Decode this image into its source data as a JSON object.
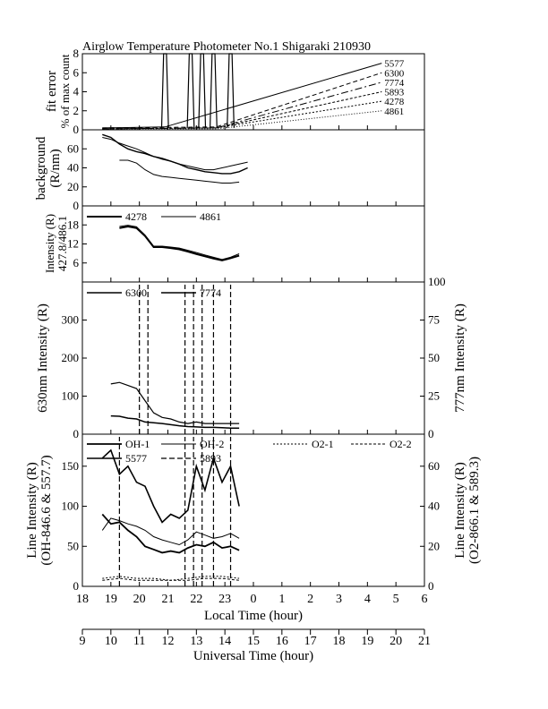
{
  "title": "Airglow Temperature Photometer No.1  Shigaraki  210930",
  "x_local": {
    "label": "Local Time (hour)",
    "ticks": [
      "18",
      "19",
      "20",
      "21",
      "22",
      "23",
      "0",
      "1",
      "2",
      "3",
      "4",
      "5",
      "6"
    ]
  },
  "x_ut": {
    "label": "Universal Time (hour)",
    "ticks": [
      "9",
      "10",
      "11",
      "12",
      "13",
      "14",
      "15",
      "16",
      "17",
      "18",
      "19",
      "20",
      "21"
    ]
  },
  "panels": {
    "fit": {
      "ylabel1": "fit error",
      "ylabel2": "% of max count",
      "yticks": [
        "0",
        "2",
        "4",
        "6",
        "8"
      ],
      "labels": [
        "5577",
        "6300",
        "7774",
        "5893",
        "4278",
        "4861"
      ]
    },
    "bg": {
      "ylabel1": "background",
      "ylabel2": "(R/nm)",
      "yticks": [
        "0",
        "20",
        "40",
        "60"
      ]
    },
    "blue": {
      "ylabel1": "Intensity (R)",
      "ylabel2": "427.8/486.1",
      "yticks": [
        "6",
        "12",
        "18"
      ],
      "legend": [
        "4278",
        "4861"
      ]
    },
    "red": {
      "ylabel_left": "630nm Intensity (R)",
      "ylabel_right": "777nm Intensity (R)",
      "yticks_left": [
        "0",
        "100",
        "200",
        "300"
      ],
      "yticks_right": [
        "0",
        "25",
        "50",
        "75",
        "100"
      ],
      "legend": [
        "6300",
        "7774"
      ]
    },
    "line": {
      "ylabel_left1": "Line Intensity (R)",
      "ylabel_left2": "(OH-846.6 & 557.7)",
      "ylabel_right1": "Line Intensity (R)",
      "ylabel_right2": "(O2-866.1 & 589.3)",
      "yticks_left": [
        "0",
        "50",
        "100",
        "150"
      ],
      "yticks_right": [
        "0",
        "20",
        "40",
        "60"
      ],
      "legend": [
        "OH-1",
        "OH-2",
        "O2-1",
        "O2-2",
        "5577",
        "5893"
      ]
    }
  },
  "chart_data": [
    {
      "type": "line",
      "title": "Airglow Temperature Photometer No.1  Shigaraki  210930",
      "ylabel": "fit error % of max count",
      "ylim": [
        0,
        8
      ],
      "xlim_local": [
        18,
        30
      ],
      "series": [
        {
          "name": "5577",
          "x": [
            18.7,
            20.9,
            28.5
          ],
          "y": [
            0.2,
            0.3,
            7.0
          ]
        },
        {
          "name": "6300",
          "x": [
            18.7,
            22.7,
            28.5
          ],
          "y": [
            0.2,
            0.3,
            6.0
          ]
        },
        {
          "name": "7774",
          "x": [
            18.7,
            22.7,
            28.5
          ],
          "y": [
            0.1,
            0.2,
            5.0
          ]
        },
        {
          "name": "5893",
          "x": [
            18.7,
            22.7,
            28.5
          ],
          "y": [
            0.1,
            0.2,
            4.0
          ]
        },
        {
          "name": "4278",
          "x": [
            18.7,
            22.7,
            28.5
          ],
          "y": [
            0.1,
            0.2,
            3.0
          ]
        },
        {
          "name": "4861",
          "x": [
            18.7,
            22.7,
            28.5
          ],
          "y": [
            0.1,
            0.1,
            2.0
          ]
        }
      ],
      "spikes_x": [
        20.9,
        21.8,
        22.2,
        22.6,
        23.2
      ]
    },
    {
      "type": "line",
      "ylabel": "background (R/nm)",
      "ylim": [
        0,
        80
      ],
      "series": [
        {
          "x": [
            18.7,
            19.0,
            19.3,
            19.6,
            19.9,
            20.2,
            20.5,
            20.8,
            21.1,
            21.4,
            21.7,
            22.0,
            22.3,
            22.6,
            22.9,
            23.2,
            23.5,
            23.8
          ],
          "y": [
            72,
            70,
            66,
            63,
            60,
            56,
            52,
            49,
            47,
            44,
            42,
            40,
            38,
            38,
            40,
            42,
            44,
            46
          ]
        },
        {
          "x": [
            18.7,
            19.0,
            19.3,
            19.6,
            19.9,
            20.2,
            20.5,
            20.8,
            21.1,
            21.4,
            21.7,
            22.0,
            22.3,
            22.6,
            22.9,
            23.2,
            23.5,
            23.8
          ],
          "y": [
            75,
            72,
            65,
            60,
            57,
            55,
            52,
            50,
            47,
            44,
            40,
            38,
            36,
            35,
            34,
            34,
            36,
            40
          ]
        },
        {
          "x": [
            19.3,
            19.6,
            19.9,
            20.2,
            20.5,
            20.8,
            21.1,
            21.4,
            21.7,
            22.0,
            22.3,
            22.6,
            22.9,
            23.2,
            23.5
          ],
          "y": [
            48,
            48,
            45,
            38,
            33,
            31,
            30,
            29,
            28,
            27,
            26,
            25,
            24,
            24,
            25
          ]
        }
      ]
    },
    {
      "type": "line",
      "ylabel": "Intensity (R) 427.8/486.1",
      "ylim": [
        0,
        24
      ],
      "series": [
        {
          "name": "4278",
          "x": [
            19.3,
            19.6,
            19.9,
            20.2,
            20.5,
            20.8,
            21.1,
            21.4,
            21.7,
            22.0,
            22.3,
            22.6,
            22.9,
            23.2,
            23.5
          ],
          "y": [
            17,
            17.5,
            17,
            14.5,
            11,
            11,
            10.7,
            10.3,
            9.6,
            8.8,
            8.1,
            7.4,
            6.8,
            7.5,
            8.3
          ]
        },
        {
          "name": "4861",
          "x": [
            19.3,
            19.6,
            19.9,
            20.2,
            20.5,
            20.8,
            21.1,
            21.4,
            21.7,
            22.0,
            22.3,
            22.6,
            22.9,
            23.2,
            23.5
          ],
          "y": [
            17.5,
            17.9,
            17.4,
            14.8,
            11.3,
            11.3,
            11,
            10.7,
            10,
            9.3,
            8.5,
            7.8,
            7.1,
            7.8,
            8.9
          ]
        }
      ]
    },
    {
      "type": "line",
      "ylabel": "630nm Intensity (R)",
      "y2label": "777nm Intensity (R)",
      "ylim": [
        0,
        400
      ],
      "y2lim": [
        0,
        100
      ],
      "series": [
        {
          "name": "6300",
          "x": [
            19.0,
            19.3,
            19.6,
            19.9,
            20.2,
            20.5,
            20.8,
            21.1,
            21.4,
            21.7,
            22.0,
            22.3,
            22.6,
            22.9,
            23.2,
            23.5
          ],
          "y": [
            48,
            47,
            42,
            40,
            32,
            30,
            28,
            25,
            22,
            20,
            19,
            18,
            18,
            17,
            16,
            16
          ]
        },
        {
          "name": "7774",
          "x": [
            19.0,
            19.3,
            19.6,
            19.9,
            20.2,
            20.5,
            20.8,
            21.1,
            21.4,
            21.7,
            22.0,
            22.3,
            22.6,
            22.9,
            23.2,
            23.5
          ],
          "y": [
            33,
            34,
            32,
            30,
            22,
            14,
            11,
            10,
            8,
            7,
            8,
            7,
            7,
            7,
            7,
            7
          ]
        }
      ],
      "spikes_x": [
        20.0,
        20.3,
        21.6,
        21.9,
        22.2,
        22.6,
        23.2
      ]
    },
    {
      "type": "line",
      "ylabel": "Line Intensity (R) (OH-846.6 & 557.7)",
      "y2label": "Line Intensity (R) (O2-866.1 & 589.3)",
      "ylim": [
        0,
        190
      ],
      "y2lim": [
        0,
        76
      ],
      "series": [
        {
          "name": "OH-1",
          "x": [
            18.7,
            19.0,
            19.3,
            19.6,
            19.9,
            20.2,
            20.5,
            20.8,
            21.1,
            21.4,
            21.7,
            22.0,
            22.3,
            22.6,
            22.9,
            23.2,
            23.5
          ],
          "y": [
            90,
            78,
            80,
            70,
            62,
            50,
            46,
            42,
            44,
            42,
            48,
            52,
            50,
            55,
            48,
            50,
            45
          ]
        },
        {
          "name": "OH-2",
          "x": [
            18.7,
            19.0,
            19.3,
            19.6,
            19.9,
            20.2,
            20.5,
            20.8,
            21.1,
            21.4,
            21.7,
            22.0,
            22.3,
            22.6,
            22.9,
            23.2,
            23.5
          ],
          "y": [
            70,
            85,
            82,
            78,
            75,
            70,
            62,
            58,
            55,
            52,
            58,
            68,
            64,
            60,
            62,
            66,
            60
          ]
        },
        {
          "name": "5577",
          "x": [
            18.7,
            19.0,
            19.3,
            19.6,
            19.9,
            20.2,
            20.5,
            20.8,
            21.1,
            21.4,
            21.7,
            22.0,
            22.3,
            22.6,
            22.9,
            23.2,
            23.5
          ],
          "y": [
            160,
            170,
            140,
            150,
            130,
            125,
            100,
            80,
            90,
            85,
            95,
            150,
            120,
            160,
            130,
            150,
            100
          ]
        },
        {
          "name": "O2-1",
          "x": [
            18.7,
            19.3,
            19.9,
            20.5,
            21.1,
            21.7,
            22.3,
            22.9,
            23.5
          ],
          "y": [
            4,
            5,
            4,
            4,
            3,
            4,
            5,
            5,
            4
          ]
        },
        {
          "name": "O2-2",
          "x": [
            18.7,
            19.3,
            19.9,
            20.5,
            21.1,
            21.7,
            22.3,
            22.9,
            23.5
          ],
          "y": [
            3,
            4,
            3,
            3,
            3,
            3,
            4,
            4,
            3
          ]
        }
      ],
      "spikes_x": [
        19.3,
        21.6,
        21.9,
        22.2,
        22.6,
        23.2
      ]
    }
  ]
}
